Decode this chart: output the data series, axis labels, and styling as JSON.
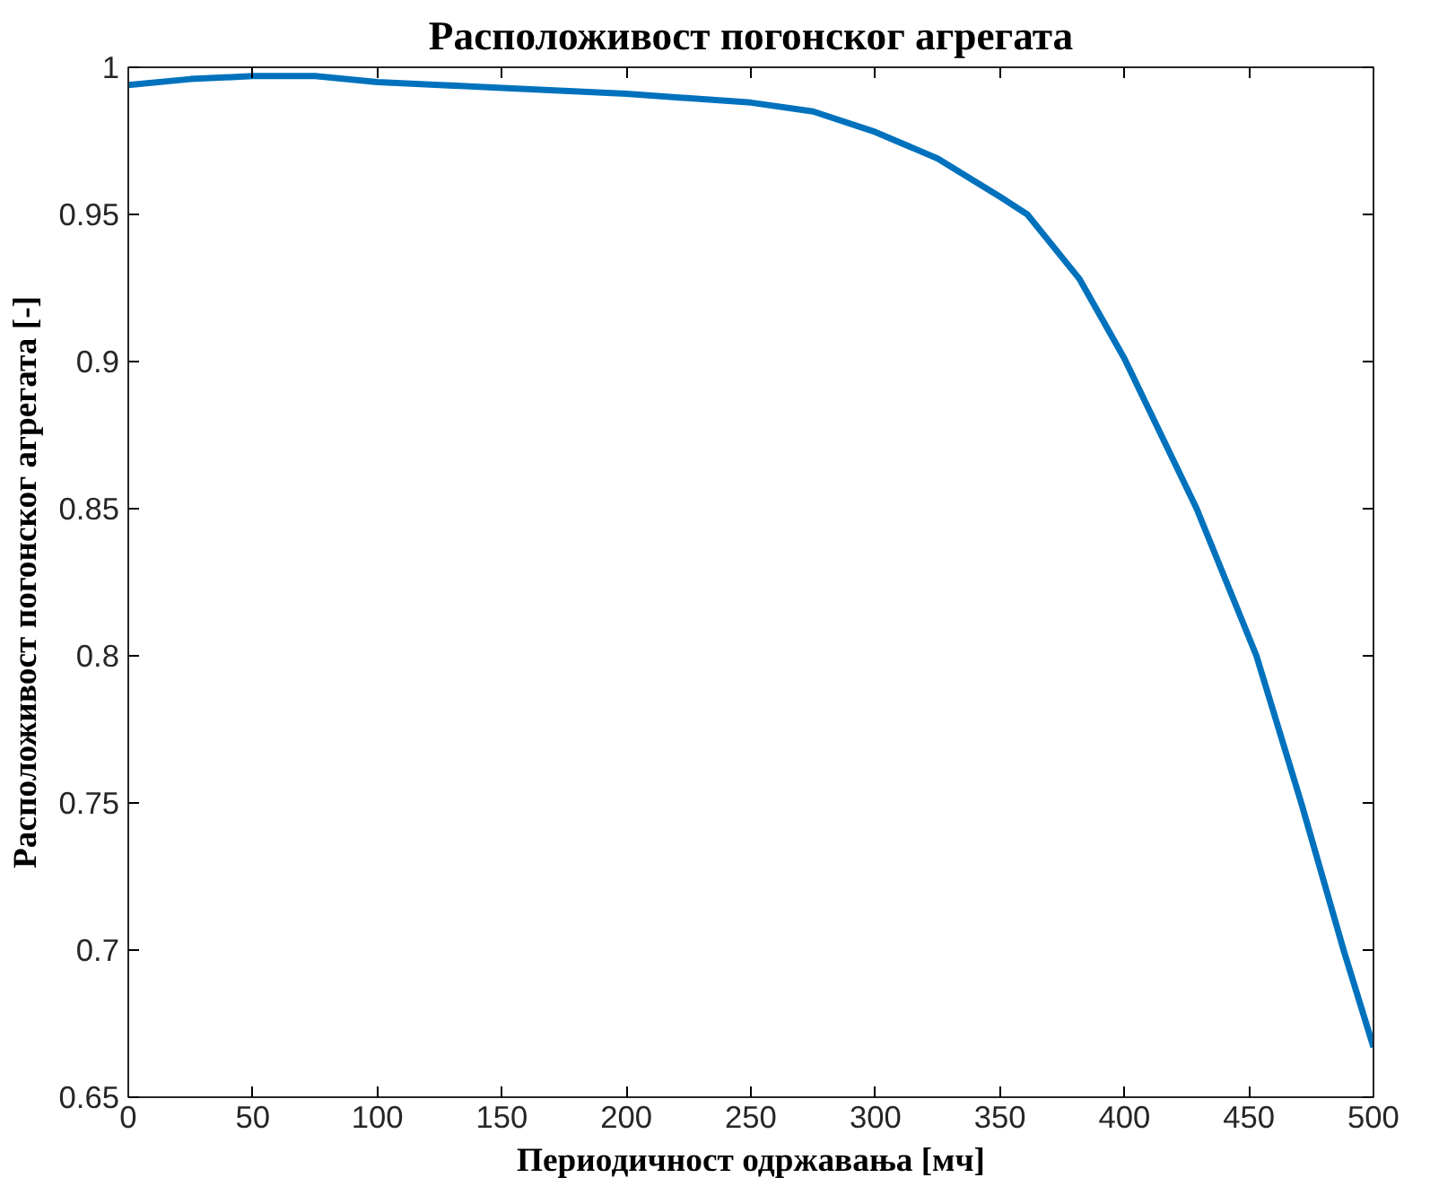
{
  "chart_data": {
    "type": "line",
    "title": "Расположивост погонског агрегата",
    "xlabel": "Периодичност одржавања [мч]",
    "ylabel": "Расположивост погонског агрегата [-]",
    "x": [
      0,
      25,
      50,
      75,
      100,
      125,
      150,
      200,
      250,
      275,
      300,
      325,
      350,
      361,
      382,
      400,
      429,
      453,
      471,
      488,
      500
    ],
    "series": [
      {
        "color": "#0072bd",
        "values": [
          0.994,
          0.996,
          0.997,
          0.997,
          0.995,
          0.994,
          0.993,
          0.991,
          0.988,
          0.985,
          0.978,
          0.969,
          0.956,
          0.95,
          0.928,
          0.901,
          0.85,
          0.8,
          0.75,
          0.7,
          0.667
        ]
      }
    ],
    "xlim": [
      0,
      500
    ],
    "ylim": [
      0.65,
      1
    ],
    "xticks": [
      0,
      50,
      100,
      150,
      200,
      250,
      300,
      350,
      400,
      450,
      500
    ],
    "yticks": [
      0.65,
      0.7,
      0.75,
      0.8,
      0.85,
      0.9,
      0.95,
      1
    ],
    "grid": false,
    "marker": "none",
    "line_style": "solid"
  }
}
